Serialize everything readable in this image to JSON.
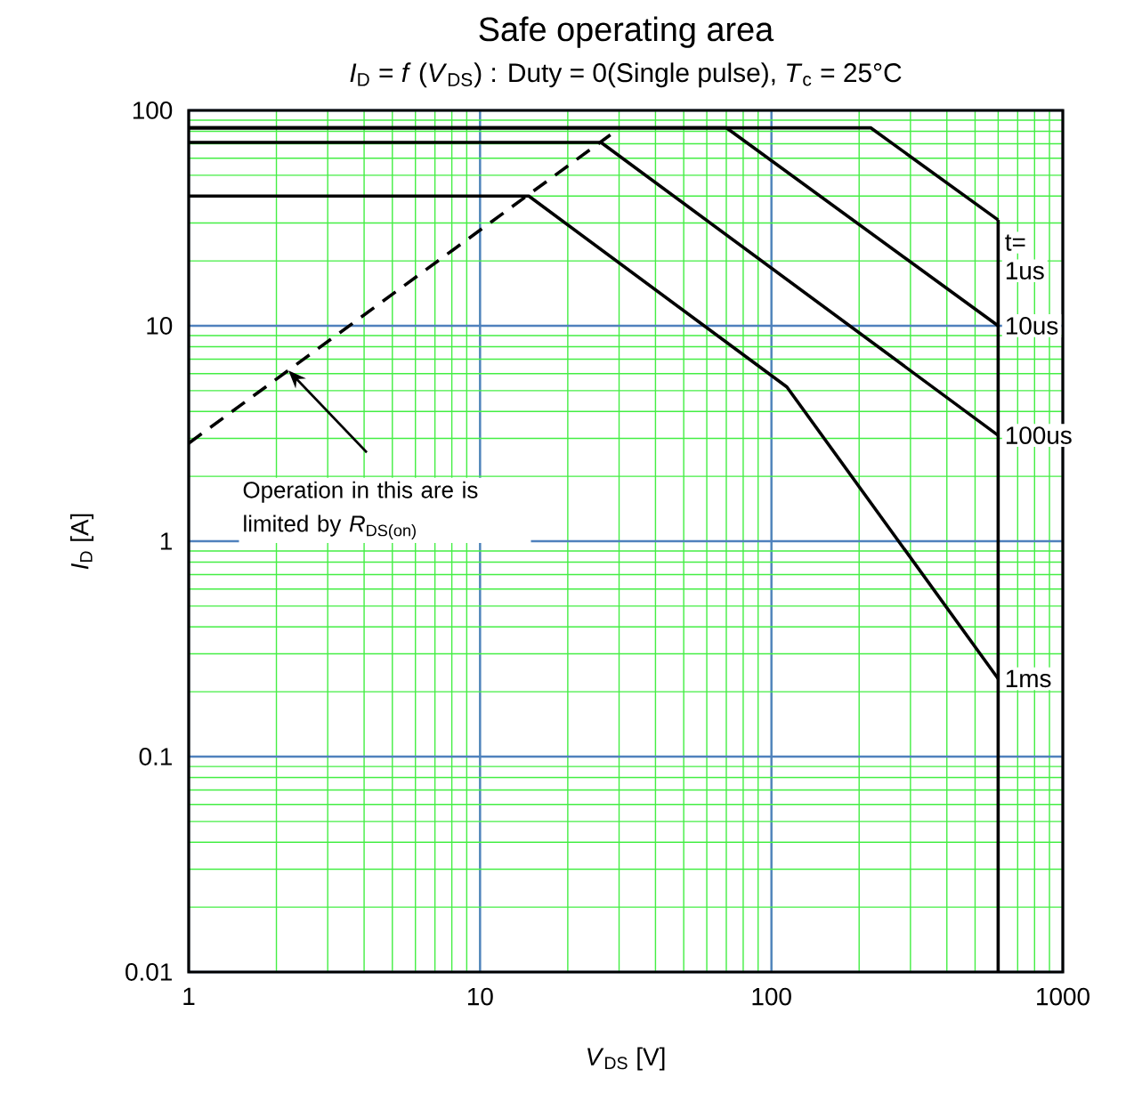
{
  "chart_data": {
    "type": "line",
    "title": "Safe operating area",
    "subtitle": "*I*$_{D}$ = *f* (*V*$_{DS}$) : Duty = 0(Single pulse), *T*$_{c}$ = 25°C",
    "xlabel": "*V*$_{DS}$ [V]",
    "ylabel": "*I*$_{D}$ [A]",
    "legend_title": "t=",
    "log": "xy",
    "grid": true,
    "xlim": [
      1,
      1000
    ],
    "ylim": [
      0.01,
      100
    ],
    "xticks": [
      1,
      10,
      100,
      1000
    ],
    "yticks": [
      0.01,
      0.1,
      1,
      10,
      100
    ],
    "series": [
      {
        "name": "1us",
        "color": "#000000",
        "x": [
          1,
          219,
          600
        ],
        "values": [
          83,
          83,
          31
        ]
      },
      {
        "name": "10us",
        "color": "#000000",
        "x": [
          1,
          70,
          600
        ],
        "values": [
          83,
          83,
          10
        ]
      },
      {
        "name": "100us",
        "color": "#000000",
        "x": [
          1,
          26,
          600
        ],
        "values": [
          71,
          71,
          3.1
        ]
      },
      {
        "name": "1ms",
        "color": "#000000",
        "x": [
          1,
          14.7,
          113,
          600
        ],
        "values": [
          40,
          40,
          5.2,
          0.23
        ]
      },
      {
        "color": "#000000",
        "line_style": "dashed",
        "x": [
          1,
          28
        ],
        "values": [
          2.85,
          77
        ]
      },
      {
        "color": "#000000",
        "x": [
          600,
          600
        ],
        "values": [
          0.01,
          31
        ]
      }
    ],
    "annotations": [
      {
        "text": "Operation in this are is limited by *R*$_{DS(on)}$",
        "x": 2.2,
        "y": 6.2
      }
    ]
  }
}
